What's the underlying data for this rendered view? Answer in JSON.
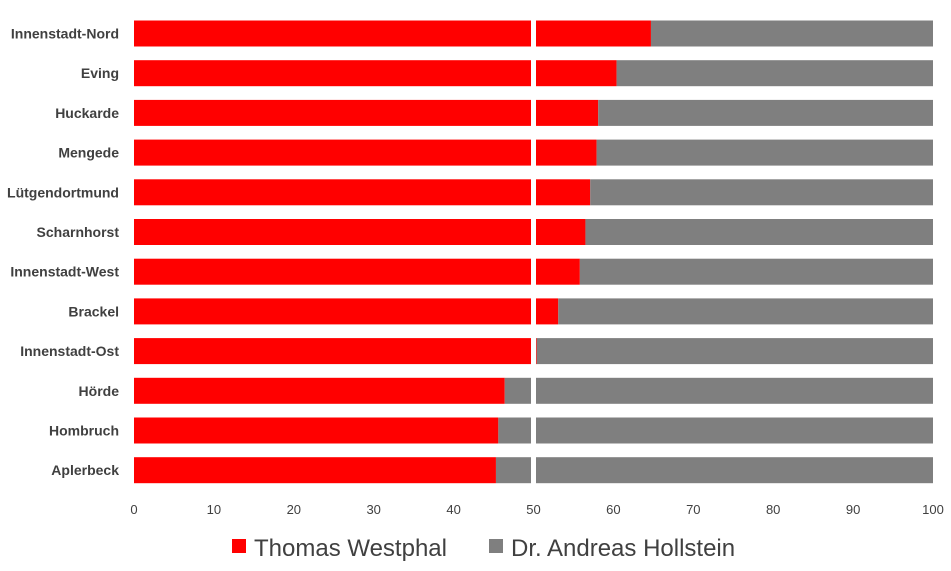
{
  "chart_data": {
    "type": "bar",
    "orientation": "horizontal",
    "stacked": true,
    "categories": [
      "Innenstadt-Nord",
      "Eving",
      "Huckarde",
      "Mengede",
      "Lütgendortmund",
      "Scharnhorst",
      "Innenstadt-West",
      "Brackel",
      "Innenstadt-Ost",
      "Hörde",
      "Hombruch",
      "Aplerbeck"
    ],
    "series": [
      {
        "name": "Thomas Westphal",
        "color": "#ff0000",
        "values": [
          64.7,
          60.4,
          58.1,
          57.9,
          57.1,
          56.5,
          55.8,
          53.1,
          50.4,
          46.4,
          45.6,
          45.3
        ]
      },
      {
        "name": "Dr. Andreas Hollstein",
        "color": "#7f7f7f",
        "values": [
          35.3,
          39.6,
          41.9,
          42.1,
          42.9,
          43.5,
          44.2,
          46.9,
          49.6,
          53.6,
          54.4,
          54.7
        ]
      }
    ],
    "reference_line": 50,
    "xlim": [
      0,
      100
    ],
    "xticks": [
      "0",
      "10",
      "20",
      "30",
      "40",
      "50",
      "60",
      "70",
      "80",
      "90",
      "100"
    ],
    "legend_position": "bottom",
    "grid": false
  }
}
